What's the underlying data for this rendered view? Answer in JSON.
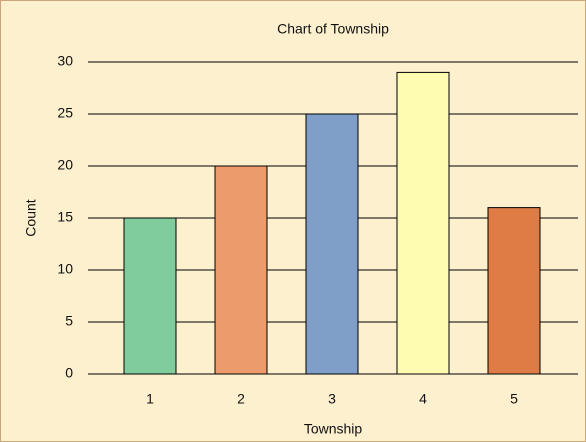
{
  "chart_data": {
    "type": "bar",
    "title": "Chart of Township",
    "x_label": "Township",
    "y_label": "Count",
    "categories": [
      "1",
      "2",
      "3",
      "4",
      "5"
    ],
    "values": [
      15,
      20,
      25,
      29,
      16
    ],
    "colors": [
      "#80cc9c",
      "#ec9c6c",
      "#7f9ec8",
      "#fefcb0",
      "#df7b45"
    ],
    "ylim": [
      0,
      30
    ],
    "yticks": [
      0,
      5,
      10,
      15,
      20,
      25,
      30
    ],
    "grid": true
  }
}
